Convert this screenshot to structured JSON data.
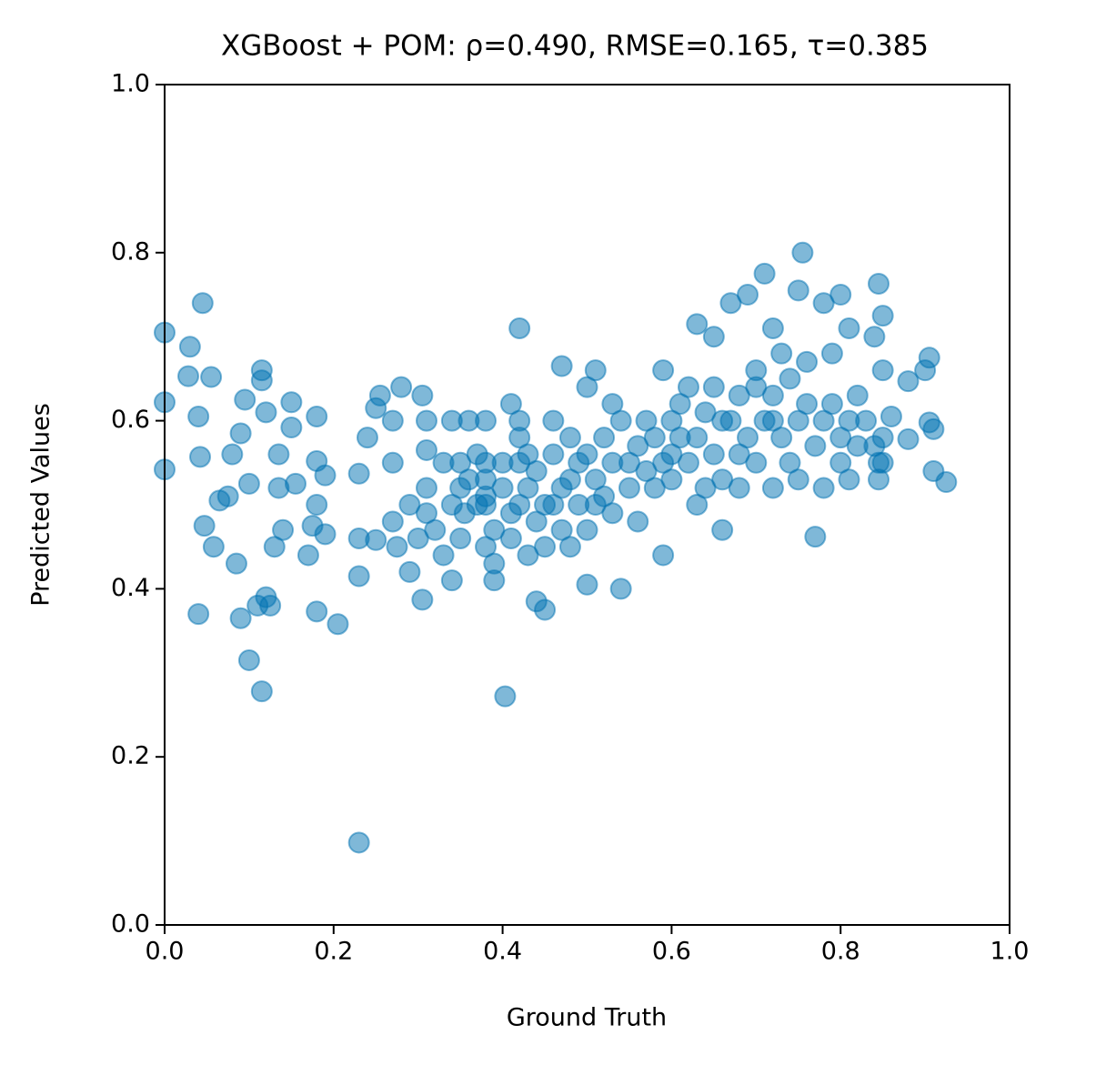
{
  "chart_data": {
    "type": "scatter",
    "title": "XGBoost + POM: ρ=0.490, RMSE=0.165, τ=0.385",
    "x_label": "Ground Truth",
    "y_label": "Predicted Values",
    "color": "#0072b2",
    "alpha": 0.5,
    "xlim": [
      0,
      1
    ],
    "ylim": [
      0,
      1
    ],
    "xticks": [
      {
        "value": 0,
        "label": "0.0"
      },
      0.2,
      0.4,
      0.6,
      0.8,
      {
        "value": 1,
        "label": "1.0"
      }
    ],
    "yticks": [
      {
        "value": 0,
        "label": "0.0"
      },
      0.2,
      0.4,
      0.6,
      0.8,
      {
        "value": 1,
        "label": "1.0"
      }
    ],
    "x": [
      0.0,
      0.0,
      0.0,
      0.03,
      0.028,
      0.045,
      0.04,
      0.042,
      0.055,
      0.04,
      0.047,
      0.058,
      0.065,
      0.075,
      0.08,
      0.085,
      0.09,
      0.09,
      0.095,
      0.1,
      0.1,
      0.11,
      0.115,
      0.115,
      0.115,
      0.12,
      0.12,
      0.125,
      0.13,
      0.135,
      0.135,
      0.14,
      0.15,
      0.15,
      0.155,
      0.17,
      0.175,
      0.18,
      0.18,
      0.18,
      0.18,
      0.19,
      0.19,
      0.205,
      0.23,
      0.23,
      0.23,
      0.23,
      0.24,
      0.25,
      0.255,
      0.25,
      0.27,
      0.27,
      0.27,
      0.275,
      0.28,
      0.29,
      0.29,
      0.3,
      0.305,
      0.31,
      0.31,
      0.31,
      0.305,
      0.31,
      0.32,
      0.33,
      0.34,
      0.34,
      0.35,
      0.35,
      0.355,
      0.36,
      0.37,
      0.38,
      0.38,
      0.38,
      0.39,
      0.4,
      0.403,
      0.41,
      0.42,
      0.42,
      0.42,
      0.43,
      0.43,
      0.44,
      0.45,
      0.45,
      0.46,
      0.47,
      0.47,
      0.48,
      0.49,
      0.5,
      0.5,
      0.51,
      0.51,
      0.52,
      0.53,
      0.54,
      0.55,
      0.56,
      0.57,
      0.58,
      0.59,
      0.59,
      0.6,
      0.61,
      0.62,
      0.63,
      0.64,
      0.65,
      0.66,
      0.66,
      0.67,
      0.68,
      0.69,
      0.7,
      0.71,
      0.72,
      0.72,
      0.73,
      0.74,
      0.75,
      0.755,
      0.76,
      0.77,
      0.78,
      0.79,
      0.8,
      0.8,
      0.81,
      0.82,
      0.83,
      0.84,
      0.845,
      0.85,
      0.85,
      0.86,
      0.88,
      0.88,
      0.9,
      0.905,
      0.905,
      0.91,
      0.91,
      0.925,
      0.38,
      0.38,
      0.38,
      0.39,
      0.39,
      0.4,
      0.41,
      0.41,
      0.42,
      0.42,
      0.43,
      0.44,
      0.44,
      0.45,
      0.46,
      0.46,
      0.47,
      0.48,
      0.48,
      0.49,
      0.5,
      0.5,
      0.51,
      0.52,
      0.53,
      0.53,
      0.54,
      0.55,
      0.56,
      0.57,
      0.58,
      0.59,
      0.6,
      0.6,
      0.61,
      0.62,
      0.63,
      0.63,
      0.64,
      0.65,
      0.65,
      0.66,
      0.67,
      0.68,
      0.68,
      0.69,
      0.7,
      0.7,
      0.71,
      0.72,
      0.72,
      0.73,
      0.74,
      0.75,
      0.75,
      0.76,
      0.77,
      0.78,
      0.78,
      0.79,
      0.8,
      0.81,
      0.81,
      0.82,
      0.84,
      0.845,
      0.845,
      0.85,
      0.85,
      0.36,
      0.37,
      0.35,
      0.34,
      0.33
    ],
    "values": [
      0.705,
      0.622,
      0.542,
      0.688,
      0.653,
      0.74,
      0.605,
      0.557,
      0.652,
      0.37,
      0.475,
      0.45,
      0.505,
      0.51,
      0.56,
      0.43,
      0.585,
      0.365,
      0.625,
      0.525,
      0.315,
      0.38,
      0.648,
      0.66,
      0.278,
      0.61,
      0.39,
      0.38,
      0.45,
      0.52,
      0.56,
      0.47,
      0.592,
      0.622,
      0.525,
      0.44,
      0.475,
      0.552,
      0.5,
      0.605,
      0.373,
      0.465,
      0.535,
      0.358,
      0.098,
      0.46,
      0.415,
      0.537,
      0.58,
      0.615,
      0.63,
      0.458,
      0.6,
      0.55,
      0.48,
      0.45,
      0.64,
      0.42,
      0.5,
      0.46,
      0.63,
      0.6,
      0.565,
      0.52,
      0.387,
      0.49,
      0.47,
      0.44,
      0.41,
      0.6,
      0.55,
      0.52,
      0.49,
      0.6,
      0.56,
      0.6,
      0.5,
      0.45,
      0.41,
      0.55,
      0.272,
      0.62,
      0.71,
      0.6,
      0.5,
      0.44,
      0.56,
      0.385,
      0.375,
      0.5,
      0.6,
      0.665,
      0.52,
      0.45,
      0.55,
      0.405,
      0.64,
      0.66,
      0.5,
      0.58,
      0.62,
      0.4,
      0.55,
      0.48,
      0.6,
      0.52,
      0.44,
      0.66,
      0.56,
      0.58,
      0.64,
      0.715,
      0.52,
      0.7,
      0.6,
      0.47,
      0.74,
      0.56,
      0.75,
      0.64,
      0.775,
      0.6,
      0.71,
      0.68,
      0.55,
      0.755,
      0.8,
      0.62,
      0.462,
      0.74,
      0.68,
      0.75,
      0.58,
      0.71,
      0.63,
      0.6,
      0.7,
      0.763,
      0.725,
      0.55,
      0.605,
      0.647,
      0.578,
      0.66,
      0.675,
      0.598,
      0.59,
      0.54,
      0.527,
      0.53,
      0.55,
      0.51,
      0.47,
      0.43,
      0.52,
      0.49,
      0.46,
      0.55,
      0.58,
      0.52,
      0.48,
      0.54,
      0.45,
      0.5,
      0.56,
      0.47,
      0.58,
      0.53,
      0.5,
      0.56,
      0.47,
      0.53,
      0.51,
      0.55,
      0.49,
      0.6,
      0.52,
      0.57,
      0.54,
      0.58,
      0.55,
      0.6,
      0.53,
      0.62,
      0.55,
      0.58,
      0.5,
      0.61,
      0.56,
      0.64,
      0.53,
      0.6,
      0.63,
      0.52,
      0.58,
      0.66,
      0.55,
      0.6,
      0.63,
      0.52,
      0.58,
      0.65,
      0.6,
      0.53,
      0.67,
      0.57,
      0.6,
      0.52,
      0.62,
      0.55,
      0.53,
      0.6,
      0.57,
      0.57,
      0.55,
      0.53,
      0.66,
      0.58,
      0.53,
      0.5,
      0.46,
      0.5,
      0.55
    ]
  }
}
